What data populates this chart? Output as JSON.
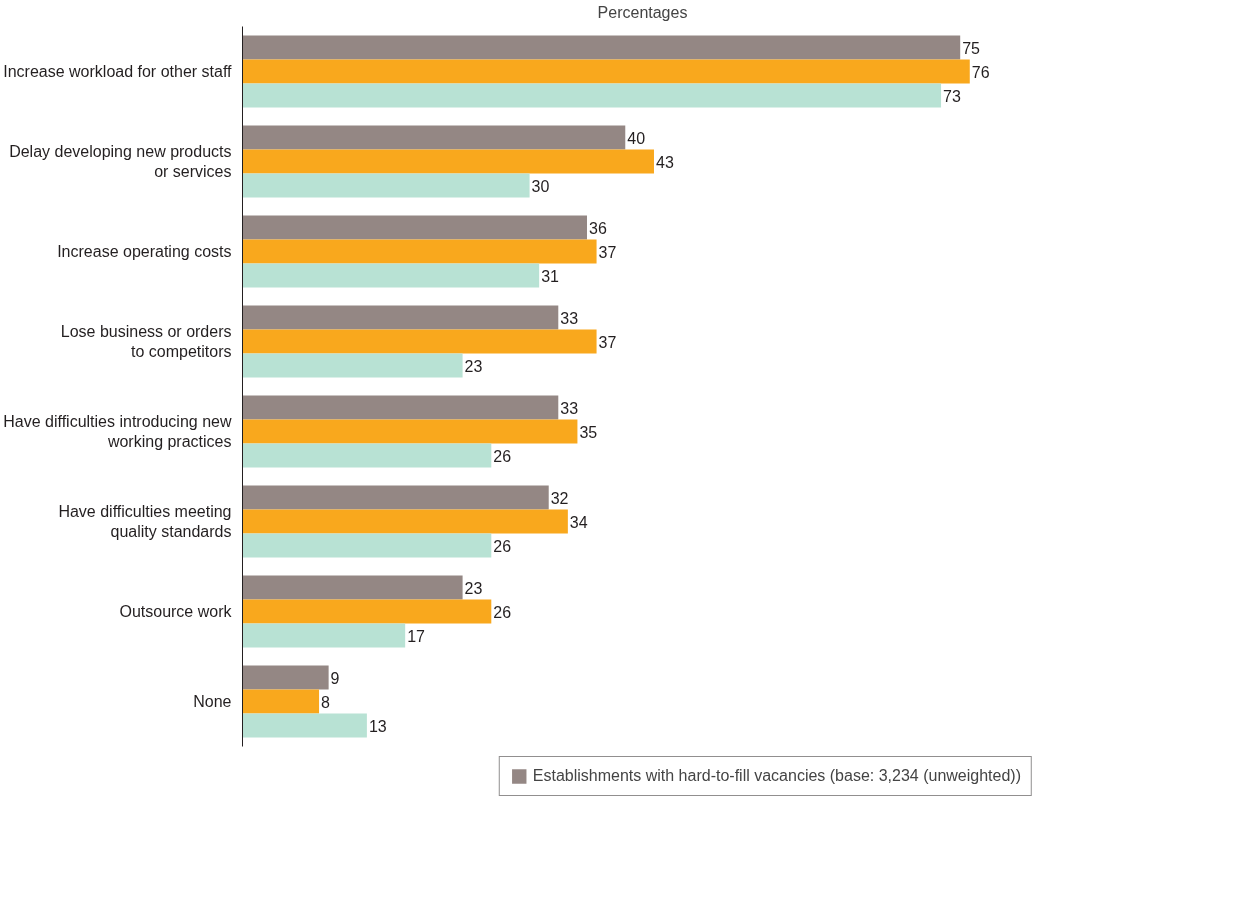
{
  "chart_data": {
    "type": "bar",
    "orientation": "horizontal",
    "xlabel": "Percentages",
    "categories": [
      "Increase workload for other staff",
      "Delay developing new products\nor services",
      "Increase operating costs",
      "Lose business or orders\nto competitors",
      "Have difficulties introducing new\nworking practices",
      "Have difficulties meeting\nquality standards",
      "Outsource work",
      "None"
    ],
    "series": [
      {
        "name": "Establishments with hard-to-fill vacancies (base: 3,234 (unweighted))",
        "color": "#948784",
        "values": [
          75,
          40,
          36,
          33,
          33,
          32,
          23,
          9
        ]
      },
      {
        "color": "#f9a81d",
        "values": [
          76,
          43,
          37,
          37,
          35,
          34,
          26,
          8
        ]
      },
      {
        "color": "#b8e2d4",
        "values": [
          73,
          30,
          31,
          23,
          26,
          26,
          17,
          13
        ]
      }
    ],
    "data_labels": true,
    "grid": false,
    "legend": "bottom"
  }
}
